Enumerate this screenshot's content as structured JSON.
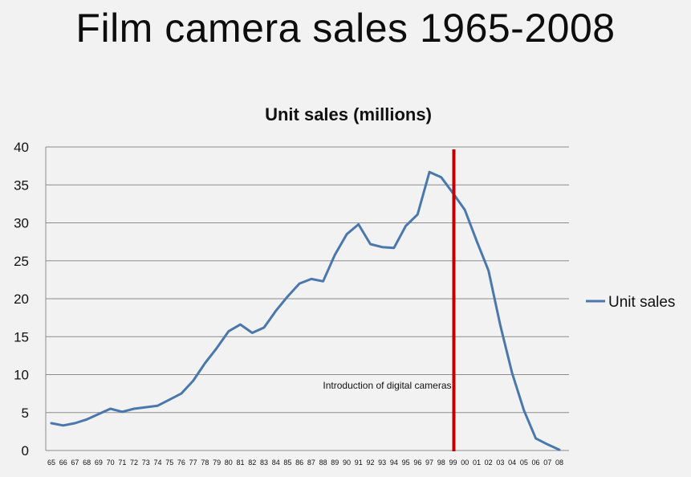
{
  "page_title": "Film camera sales 1965-2008",
  "chart_data": {
    "type": "line",
    "title": "Unit sales (millions)",
    "xlabel": "",
    "ylabel": "",
    "ylim": [
      0,
      40
    ],
    "yticks": [
      0,
      5,
      10,
      15,
      20,
      25,
      30,
      35,
      40
    ],
    "grid": true,
    "legend_position": "right",
    "categories": [
      "65",
      "66",
      "67",
      "68",
      "69",
      "70",
      "71",
      "72",
      "73",
      "74",
      "75",
      "76",
      "77",
      "78",
      "79",
      "80",
      "81",
      "82",
      "83",
      "84",
      "85",
      "86",
      "87",
      "88",
      "89",
      "90",
      "91",
      "92",
      "93",
      "94",
      "95",
      "96",
      "97",
      "98",
      "99",
      "00",
      "01",
      "02",
      "03",
      "04",
      "05",
      "06",
      "07",
      "08"
    ],
    "series": [
      {
        "name": "Unit sales",
        "color": "#4a78ad",
        "values": [
          3.6,
          3.3,
          3.6,
          4.1,
          4.8,
          5.5,
          5.1,
          5.5,
          5.7,
          5.9,
          6.7,
          7.5,
          9.2,
          11.5,
          13.5,
          15.7,
          16.6,
          15.5,
          16.2,
          18.4,
          20.3,
          22.0,
          22.6,
          22.3,
          25.8,
          28.5,
          29.8,
          27.2,
          26.8,
          26.7,
          29.6,
          31.1,
          36.7,
          36.0,
          33.9,
          31.7,
          27.6,
          23.7,
          16.5,
          10.2,
          5.3,
          1.6,
          0.8,
          0.1
        ]
      }
    ],
    "marker": {
      "category": "99",
      "color": "#c00000",
      "label": "Introduction of digital cameras"
    }
  }
}
